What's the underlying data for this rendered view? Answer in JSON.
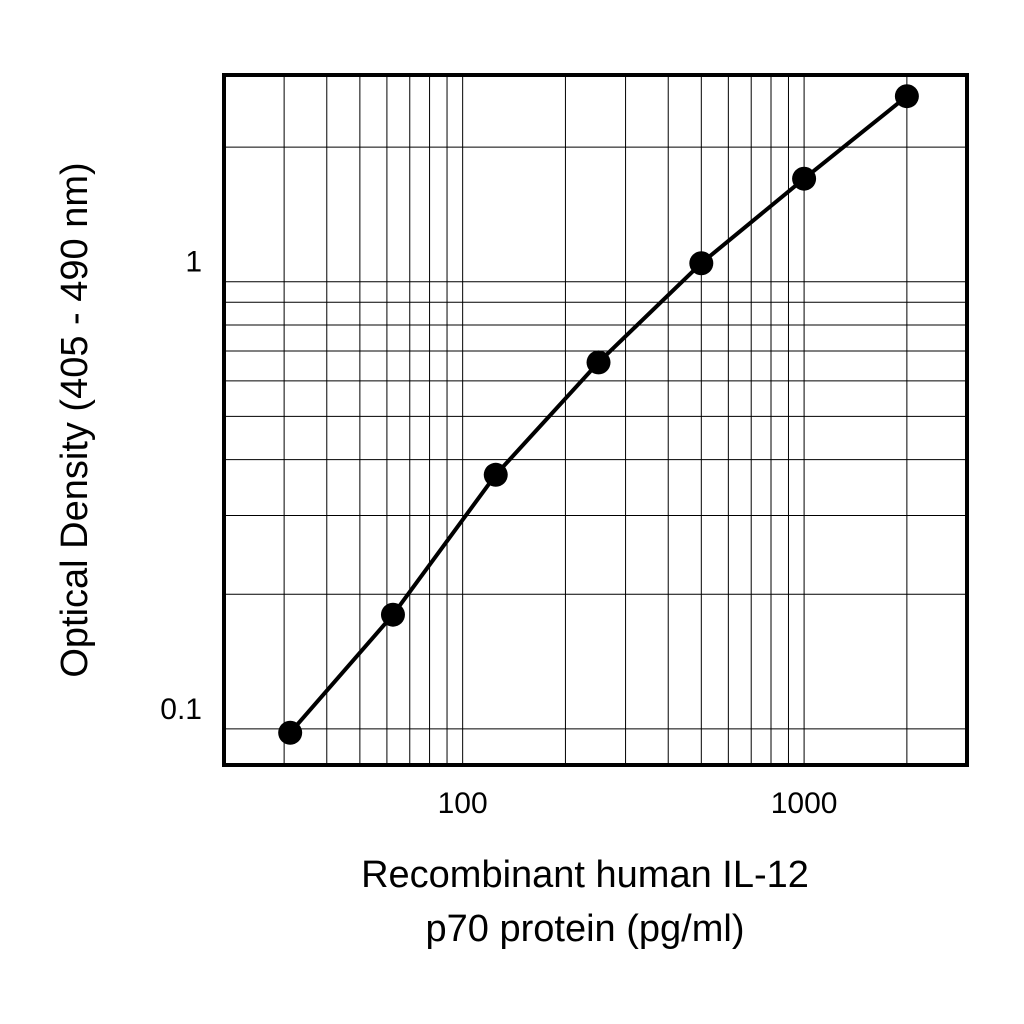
{
  "chart_data": {
    "type": "line",
    "xscale": "log",
    "yscale": "log",
    "xlim": [
      20,
      3000
    ],
    "ylim": [
      0.083,
      2.9
    ],
    "xlabel_lines": [
      "Recombinant human IL-12",
      "p70 protein (pg/ml)"
    ],
    "ylabel": "Optical Density (405 - 490 nm)",
    "grid": true,
    "x_ticks": [
      {
        "value": 100,
        "label": "100"
      },
      {
        "value": 1000,
        "label": "1000"
      }
    ],
    "y_ticks": [
      {
        "value": 0.1,
        "label": "0.1"
      },
      {
        "value": 1,
        "label": "1"
      }
    ],
    "x_gridlines": [
      30,
      40,
      50,
      60,
      70,
      80,
      90,
      100,
      200,
      300,
      400,
      500,
      600,
      700,
      800,
      900,
      1000,
      2000
    ],
    "y_gridlines": [
      0.1,
      0.2,
      0.3,
      0.4,
      0.5,
      0.6,
      0.7,
      0.8,
      0.9,
      1,
      2
    ],
    "series": [
      {
        "x": [
          31.25,
          62.5,
          125,
          250,
          500,
          1000,
          2000
        ],
        "y": [
          0.098,
          0.18,
          0.37,
          0.66,
          1.1,
          1.7,
          2.6
        ]
      }
    ],
    "colors": {
      "line": "#000000",
      "marker": "#000000",
      "grid": "#000000",
      "frame": "#000000"
    }
  }
}
